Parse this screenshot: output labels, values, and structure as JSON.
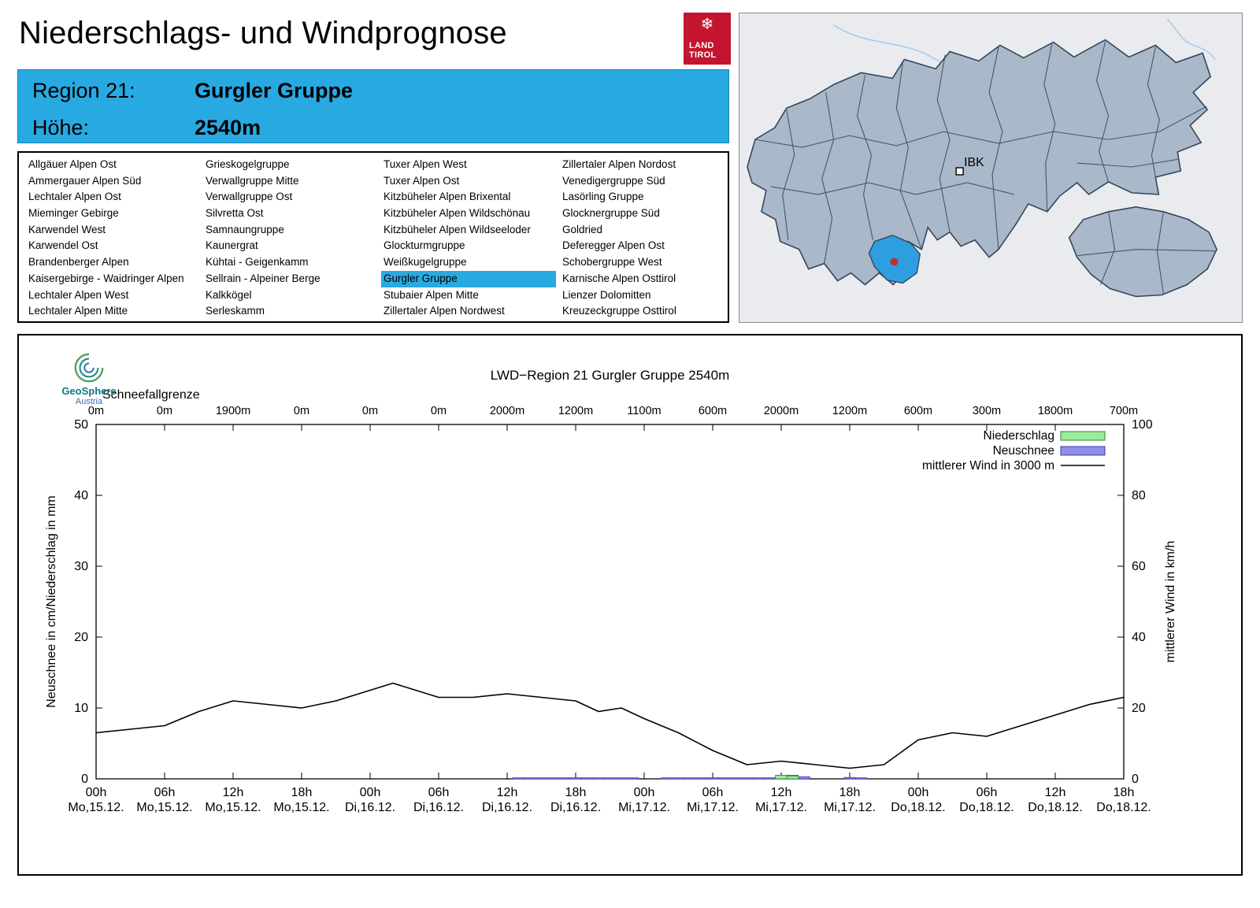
{
  "page": {
    "title": "Niederschlags- und Windprognose"
  },
  "logo": {
    "snowflake": "❄",
    "line1": "LAND",
    "line2": "TIROL"
  },
  "branding": {
    "geosphere": "GeoSphere",
    "austria": "Austria"
  },
  "header": {
    "region_label": "Region 21:",
    "region_value": "Gurgler Gruppe",
    "altitude_label": "Höhe:",
    "altitude_value": "2540m"
  },
  "colors": {
    "accent": "#29A9E1",
    "tirol_red": "#C41430",
    "map_region_fill": "#A9B9C9",
    "map_region_stroke": "#33475C",
    "map_highlight": "#2D9FE0",
    "marker_red": "#C03030"
  },
  "region_list": {
    "highlight": "Gurgler Gruppe",
    "columns": [
      [
        "Allgäuer Alpen Ost",
        "Ammergauer Alpen Süd",
        "Lechtaler Alpen Ost",
        "Mieminger Gebirge",
        "Karwendel West",
        "Karwendel Ost",
        "Brandenberger Alpen",
        "Kaisergebirge - Waidringer Alpen",
        "Lechtaler Alpen West",
        "Lechtaler Alpen Mitte"
      ],
      [
        "Grieskogelgruppe",
        "Verwallgruppe Mitte",
        "Verwallgruppe Ost",
        "Silvretta Ost",
        "Samnaungruppe",
        "Kaunergrat",
        "Kühtai - Geigenkamm",
        "Sellrain - Alpeiner Berge",
        "Kalkkögel",
        "Serleskamm"
      ],
      [
        "Tuxer Alpen West",
        "Tuxer Alpen Ost",
        "Kitzbüheler Alpen Brixental",
        "Kitzbüheler Alpen Wildschönau",
        "Kitzbüheler Alpen Wildseeloder",
        "Glockturmgruppe",
        "Weißkugelgruppe",
        "Gurgler Gruppe",
        "Stubaier Alpen Mitte",
        "Zillertaler Alpen Nordwest"
      ],
      [
        "Zillertaler Alpen Nordost",
        "Venedigergruppe Süd",
        "Lasörling Gruppe",
        "Glocknergruppe Süd",
        "Goldried",
        "Deferegger Alpen Ost",
        "Schobergruppe West",
        "Karnische Alpen Osttirol",
        "Lienzer Dolomitten",
        "Kreuzeckgruppe Osttirol"
      ]
    ]
  },
  "map": {
    "marker_label": "IBK"
  },
  "chart_data": {
    "type": "line+bar",
    "title": "LWD−Region 21 Gurgler Gruppe 2540m",
    "top_axis_label": "Schneefallgrenze",
    "top_axis_values": [
      "0m",
      "0m",
      "1900m",
      "0m",
      "0m",
      "0m",
      "2000m",
      "1200m",
      "1100m",
      "600m",
      "2000m",
      "1200m",
      "600m",
      "300m",
      "1800m",
      "700m"
    ],
    "x_tick_times": [
      "00h",
      "06h",
      "12h",
      "18h",
      "00h",
      "06h",
      "12h",
      "18h",
      "00h",
      "06h",
      "12h",
      "18h",
      "00h",
      "06h",
      "12h",
      "18h"
    ],
    "x_tick_dates": [
      "Mo,15.12.",
      "Mo,15.12.",
      "Mo,15.12.",
      "Mo,15.12.",
      "Di,16.12.",
      "Di,16.12.",
      "Di,16.12.",
      "Di,16.12.",
      "Mi,17.12.",
      "Mi,17.12.",
      "Mi,17.12.",
      "Mi,17.12.",
      "Do,18.12.",
      "Do,18.12.",
      "Do,18.12.",
      "Do,18.12."
    ],
    "ylabel_left": "Neuschnee in cm/Niederschlag in mm",
    "ylabel_right": "mittlerer Wind in km/h",
    "ylim_left": [
      0,
      50
    ],
    "ylim_right": [
      0,
      100
    ],
    "x_range_hours": [
      0,
      90
    ],
    "grid": false,
    "legend_position": "top-right",
    "legend": [
      {
        "label": "Niederschlag",
        "type": "bar",
        "fill": "#9BEB9B",
        "stroke": "#2E8B2E"
      },
      {
        "label": "Neuschnee",
        "type": "bar",
        "fill": "#8F8FE8",
        "stroke": "#3C3CB4"
      },
      {
        "label": "mittlerer Wind in 3000 m",
        "type": "line",
        "stroke": "#000000"
      }
    ],
    "wind": {
      "name": "mittlerer Wind in 3000 m",
      "unit": "km/h",
      "axis": "right",
      "x_hours": [
        0,
        3,
        6,
        9,
        12,
        15,
        18,
        21,
        24,
        26,
        30,
        33,
        36,
        39,
        42,
        44,
        46,
        48,
        51,
        54,
        57,
        60,
        63,
        66,
        69,
        72,
        75,
        78,
        81,
        84,
        87,
        90
      ],
      "values_kmh": [
        13,
        14,
        15,
        19,
        22,
        21,
        20,
        22,
        25,
        27,
        23,
        23,
        24,
        23,
        22,
        19,
        20,
        17,
        13,
        8,
        4,
        5,
        4,
        3,
        4,
        11,
        13,
        12,
        15,
        18,
        21,
        23
      ]
    },
    "neuschnee": {
      "name": "Neuschnee",
      "unit": "cm",
      "axis": "left",
      "x_hours": [
        37,
        38,
        39,
        40,
        41,
        42,
        43,
        44,
        45,
        46,
        47,
        50,
        51,
        52,
        53,
        54,
        55,
        56,
        57,
        58,
        59,
        60,
        61,
        62,
        66,
        67
      ],
      "values": [
        0.15,
        0.15,
        0.15,
        0.15,
        0.15,
        0.15,
        0.15,
        0.15,
        0.15,
        0.15,
        0.15,
        0.15,
        0.15,
        0.15,
        0.15,
        0.15,
        0.15,
        0.15,
        0.15,
        0.15,
        0.15,
        0.5,
        0.5,
        0.3,
        0.2,
        0.15
      ]
    },
    "niederschlag": {
      "name": "Niederschlag",
      "unit": "mm",
      "axis": "left",
      "x_hours": [
        60,
        61
      ],
      "values": [
        0.5,
        0.4
      ]
    }
  }
}
